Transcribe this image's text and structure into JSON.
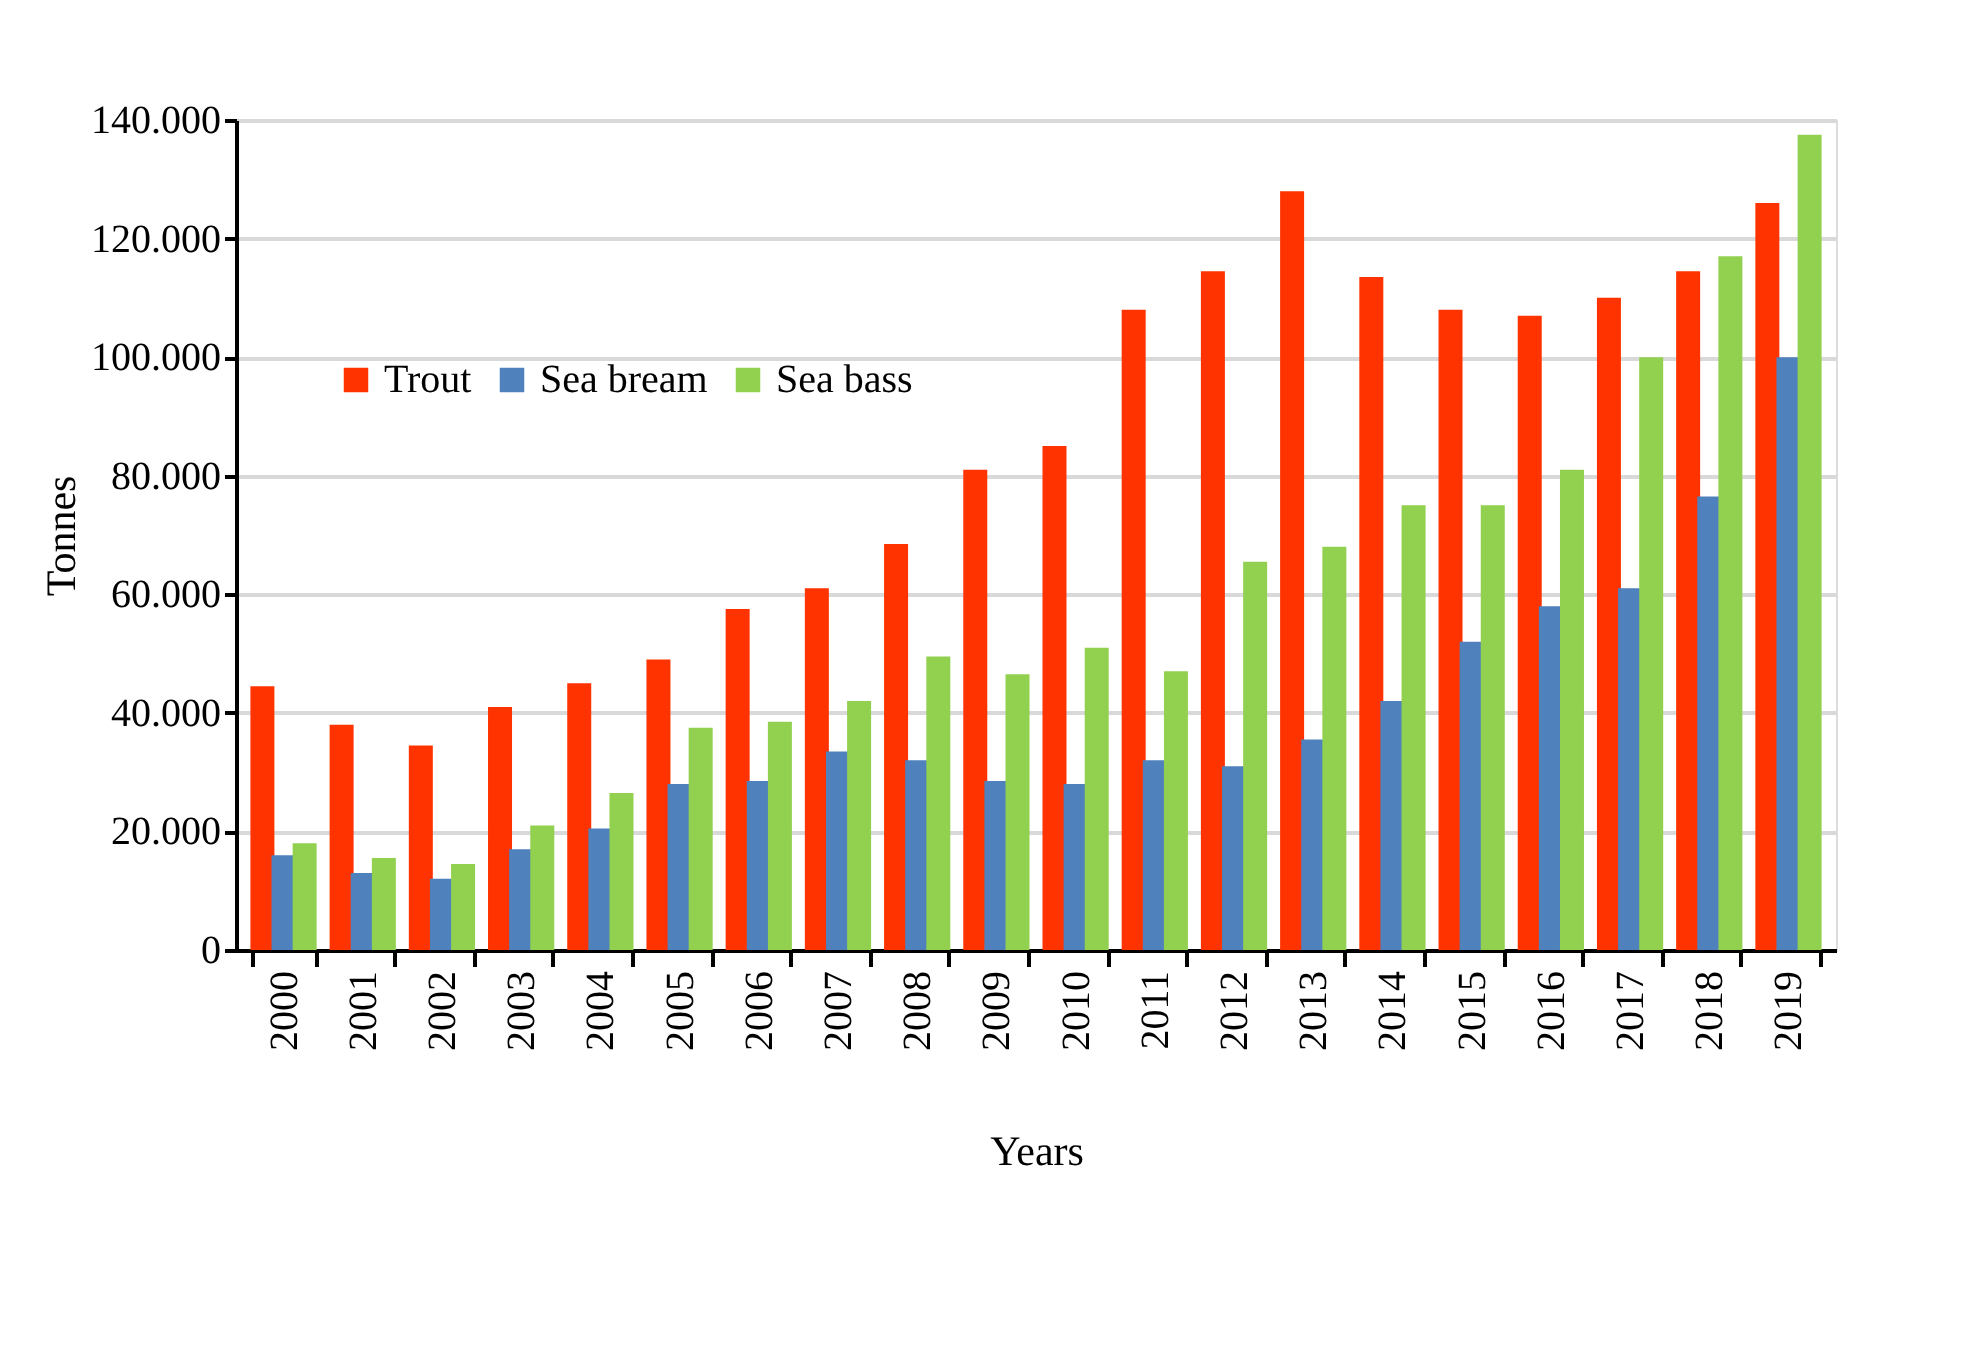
{
  "chart_data": {
    "type": "bar",
    "xlabel": "Years",
    "ylabel": "Tonnes",
    "categories": [
      "2000",
      "2001",
      "2002",
      "2003",
      "2004",
      "2005",
      "2006",
      "2007",
      "2008",
      "2009",
      "2010",
      "2011",
      "2012",
      "2013",
      "2014",
      "2015",
      "2016",
      "2017",
      "2018",
      "2019"
    ],
    "series": [
      {
        "name": "Trout",
        "color": "#ff3300",
        "values": [
          44500,
          38000,
          34500,
          41000,
          45000,
          49000,
          57500,
          61000,
          68500,
          81000,
          85000,
          108000,
          114500,
          128000,
          113500,
          108000,
          107000,
          110000,
          114500,
          126000
        ]
      },
      {
        "name": "Sea bream",
        "color": "#4f81bd",
        "values": [
          16000,
          13000,
          12000,
          17000,
          20500,
          28000,
          28500,
          33500,
          32000,
          28500,
          28000,
          32000,
          31000,
          35500,
          42000,
          52000,
          58000,
          61000,
          76500,
          100000
        ]
      },
      {
        "name": "Sea bass",
        "color": "#92d050",
        "values": [
          18000,
          15500,
          14500,
          21000,
          26500,
          37500,
          38500,
          42000,
          49500,
          46500,
          51000,
          47000,
          65500,
          68000,
          75000,
          75000,
          81000,
          100000,
          117000,
          137500
        ]
      }
    ],
    "ylim": [
      0,
      140000
    ],
    "yticks": [
      0,
      {
        "value": 20000,
        "label": "20.000"
      },
      {
        "value": 40000,
        "label": "40.000"
      },
      {
        "value": 60000,
        "label": "60.000"
      },
      {
        "value": 80000,
        "label": "80.000"
      },
      {
        "value": 100000,
        "label": "100.000"
      },
      {
        "value": 120000,
        "label": "120.000"
      },
      {
        "value": 140000,
        "label": "140.000"
      }
    ],
    "grid": "y",
    "legend": "top left"
  }
}
